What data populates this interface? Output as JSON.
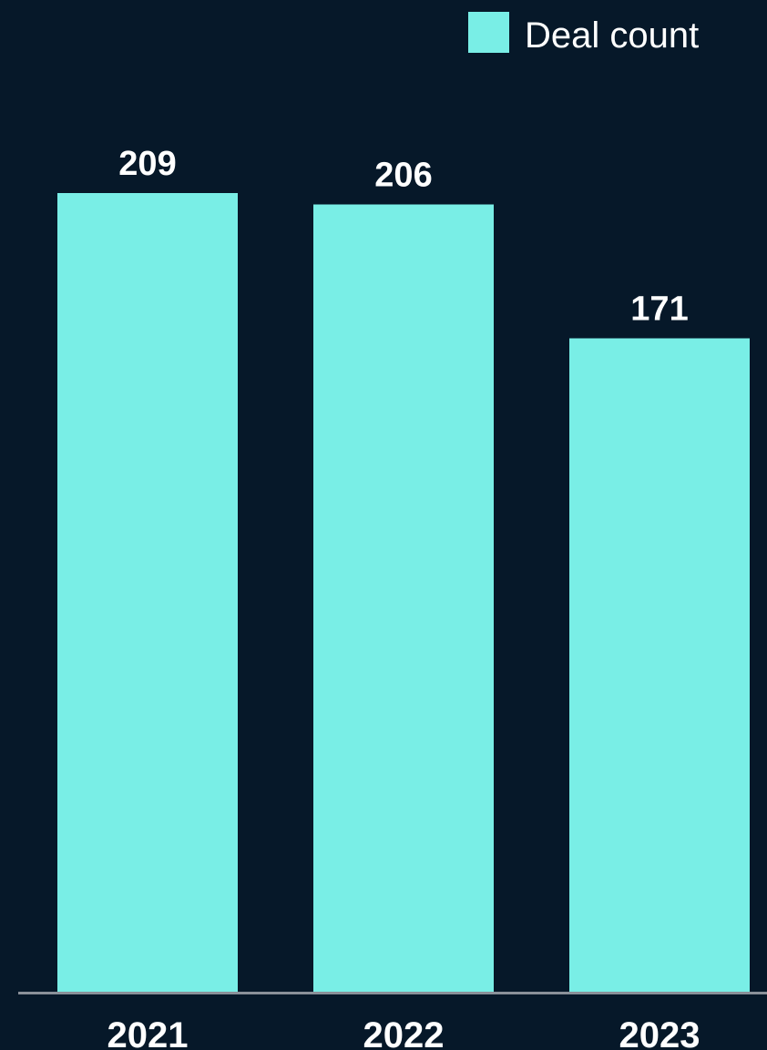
{
  "colors": {
    "background": "#061829",
    "bar": "#79EEE6",
    "text": "#FFFFFF",
    "axis": "#8A9099"
  },
  "chart_data": {
    "type": "bar",
    "categories": [
      "2021",
      "2022",
      "2023"
    ],
    "series": [
      {
        "name": "Deal count",
        "values": [
          209,
          206,
          171
        ]
      }
    ],
    "data_labels": [
      "209",
      "206",
      "171"
    ],
    "title": "",
    "xlabel": "",
    "ylabel": "",
    "ylim": [
      0,
      209
    ],
    "grid": false,
    "legend": "top-right"
  }
}
